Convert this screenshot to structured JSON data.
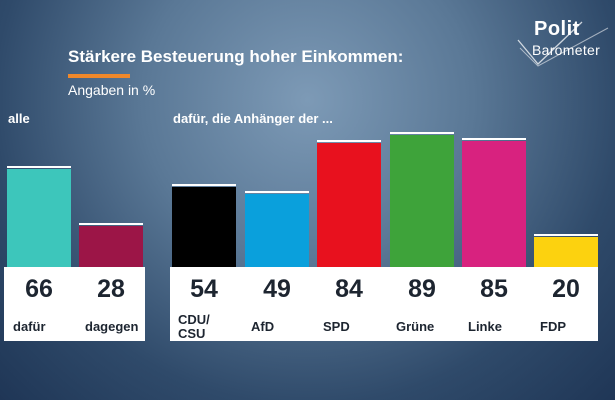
{
  "chart_data": {
    "type": "bar",
    "title": "Stärkere Besteuerung hoher Einkommen:",
    "subtitle": "Angaben in %",
    "groups": [
      {
        "label": "alle",
        "categories": [
          "dafür",
          "dagegen"
        ],
        "values": [
          66,
          28
        ],
        "colors": [
          "#3dc6bb",
          "#9c1547"
        ]
      },
      {
        "label": "dafür, die Anhänger der ...",
        "categories": [
          "CDU/ CSU",
          "AfD",
          "SPD",
          "Grüne",
          "Linke",
          "FDP"
        ],
        "values": [
          54,
          49,
          84,
          89,
          85,
          20
        ],
        "colors": [
          "#000000",
          "#0aa0dc",
          "#e8111e",
          "#3ea33a",
          "#d8227f",
          "#fcd20f"
        ]
      }
    ],
    "ylim": [
      0,
      100
    ],
    "logo": [
      "Polit",
      "Barometer"
    ]
  }
}
